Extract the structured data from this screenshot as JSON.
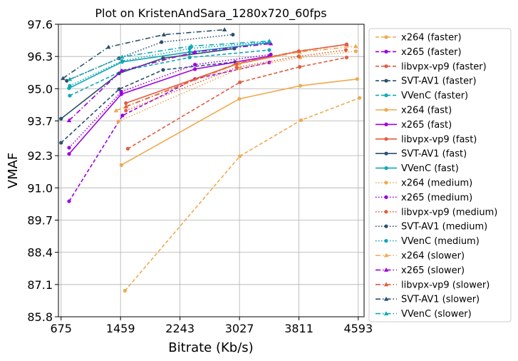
{
  "chart_data": {
    "type": "line",
    "title": "Plot on KristenAndSara_1280x720_60fps",
    "xlabel": "Bitrate (Kb/s)",
    "ylabel": "VMAF",
    "xlim": [
      640,
      4670
    ],
    "ylim": [
      85.8,
      97.6
    ],
    "xticks": [
      675,
      1459,
      2243,
      3027,
      3811,
      4593
    ],
    "yticks": [
      85.8,
      87.1,
      88.4,
      89.7,
      91.0,
      92.3,
      93.7,
      95.0,
      96.3,
      97.6
    ],
    "ytick_labels": [
      "85.8",
      "87.1",
      "88.4",
      "89.7",
      "91.0",
      "92.3",
      "93.7",
      "95.0",
      "96.3",
      "97.6"
    ],
    "grid": true,
    "legend_position": "right-outside",
    "series": [
      {
        "name": "x264 (faster)",
        "color": "#f0a94d",
        "dash": "dashed",
        "marker": "circle",
        "x": [
          1517,
          3033,
          3840,
          4610
        ],
        "y": [
          86.85,
          92.28,
          93.73,
          94.63
        ]
      },
      {
        "name": "x265 (faster)",
        "color": "#9a00e0",
        "dash": "dashed",
        "marker": "circle",
        "x": [
          781,
          1485,
          2440,
          3420
        ],
        "y": [
          90.46,
          93.92,
          95.39,
          96.06
        ]
      },
      {
        "name": "libvpx-vp9 (faster)",
        "color": "#e45c3f",
        "dash": "dashed",
        "marker": "circle",
        "x": [
          1555,
          3033,
          3820,
          4440
        ],
        "y": [
          92.58,
          95.26,
          95.88,
          96.26
        ]
      },
      {
        "name": "SVT-AV1 (faster)",
        "color": "#29506d",
        "dash": "dashed",
        "marker": "circle",
        "x": [
          675,
          1440,
          2020,
          2970
        ],
        "y": [
          92.82,
          94.98,
          95.76,
          96.08
        ]
      },
      {
        "name": "VVenC (faster)",
        "color": "#10a9b6",
        "dash": "dashed",
        "marker": "circle",
        "x": [
          790,
          1480,
          2370,
          3420
        ],
        "y": [
          94.72,
          95.72,
          96.26,
          96.56
        ]
      },
      {
        "name": "x264 (fast)",
        "color": "#f0a94d",
        "dash": "solid",
        "marker": "circle",
        "x": [
          1470,
          3025,
          3830,
          4580
        ],
        "y": [
          91.92,
          94.59,
          95.12,
          95.39
        ]
      },
      {
        "name": "x265 (fast)",
        "color": "#9a00e0",
        "dash": "solid",
        "marker": "circle",
        "x": [
          781,
          1469,
          2440,
          3420
        ],
        "y": [
          92.37,
          94.78,
          95.79,
          96.31
        ]
      },
      {
        "name": "libvpx-vp9 (fast)",
        "color": "#e45c3f",
        "dash": "solid",
        "marker": "circle",
        "x": [
          1530,
          2990,
          3810,
          4440
        ],
        "y": [
          94.42,
          95.99,
          96.51,
          96.79
        ]
      },
      {
        "name": "SVT-AV1 (fast)",
        "color": "#29506d",
        "dash": "solid",
        "marker": "circle",
        "x": [
          675,
          1440,
          2020,
          2960
        ],
        "y": [
          93.79,
          95.62,
          96.23,
          96.62
        ]
      },
      {
        "name": "VVenC (fast)",
        "color": "#10a9b6",
        "dash": "solid",
        "marker": "circle",
        "x": [
          780,
          1480,
          2370,
          3420
        ],
        "y": [
          95.02,
          96.08,
          96.48,
          96.86
        ]
      },
      {
        "name": "x264 (medium)",
        "color": "#f0a94d",
        "dash": "dotted",
        "marker": "circle",
        "x": [
          1430,
          3030,
          3830,
          4560
        ],
        "y": [
          93.68,
          95.82,
          96.26,
          96.51
        ]
      },
      {
        "name": "x265 (medium)",
        "color": "#9a00e0",
        "dash": "dotted",
        "marker": "circle",
        "x": [
          781,
          1469,
          2440,
          3440
        ],
        "y": [
          92.62,
          94.88,
          95.97,
          96.38
        ]
      },
      {
        "name": "libvpx-vp9 (medium)",
        "color": "#e45c3f",
        "dash": "dotted",
        "marker": "circle",
        "x": [
          1530,
          2990,
          3810,
          4430
        ],
        "y": [
          94.12,
          95.86,
          96.31,
          96.56
        ]
      },
      {
        "name": "SVT-AV1 (medium)",
        "color": "#29506d",
        "dash": "dotted",
        "marker": "circle",
        "x": [
          750,
          1440,
          2000,
          2940
        ],
        "y": [
          95.32,
          96.23,
          96.88,
          97.18
        ]
      },
      {
        "name": "VVenC (medium)",
        "color": "#10a9b6",
        "dash": "dotted",
        "marker": "circle",
        "x": [
          790,
          1480,
          2370,
          3420
        ],
        "y": [
          95.12,
          96.12,
          96.62,
          96.89
        ]
      },
      {
        "name": "x264 (slower)",
        "color": "#f0a94d",
        "dash": "dashdot",
        "marker": "triangle",
        "x": [
          1400,
          3020,
          3820,
          4560
        ],
        "y": [
          94.12,
          96.02,
          96.48,
          96.71
        ]
      },
      {
        "name": "x265 (slower)",
        "color": "#9a00e0",
        "dash": "dashdot",
        "marker": "triangle",
        "x": [
          781,
          1469,
          2440,
          3440
        ],
        "y": [
          93.72,
          95.72,
          96.48,
          96.82
        ]
      },
      {
        "name": "libvpx-vp9 (slower)",
        "color": "#e45c3f",
        "dash": "dashdot",
        "marker": "triangle",
        "x": [
          1530,
          2990,
          3810,
          4440
        ],
        "y": [
          94.28,
          96.02,
          96.52,
          96.78
        ]
      },
      {
        "name": "SVT-AV1 (slower)",
        "color": "#29506d",
        "dash": "dashdot",
        "marker": "triangle",
        "x": [
          700,
          1300,
          2030,
          2830
        ],
        "y": [
          95.42,
          96.68,
          97.18,
          97.38
        ]
      },
      {
        "name": "VVenC (slower)",
        "color": "#10a9b6",
        "dash": "dashdot",
        "marker": "triangle",
        "x": [
          790,
          1480,
          2390,
          3420
        ],
        "y": [
          95.38,
          96.28,
          96.72,
          96.92
        ]
      }
    ]
  }
}
